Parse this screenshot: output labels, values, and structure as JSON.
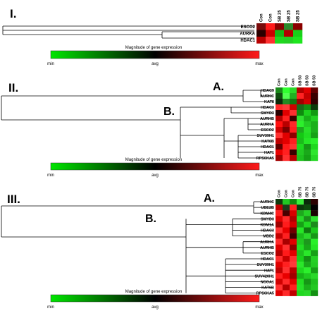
{
  "panels": [
    {
      "roman": "I.",
      "cols": [
        "Con",
        "Con",
        "SB 25",
        "SB 25",
        "SB 25"
      ],
      "genes": [
        "ESCO2",
        "AURKA",
        "HDAC1"
      ],
      "heat": [
        [
          "#7a0b0b",
          "#ff1a1a",
          "#8b0000",
          "#2b8a2b",
          "#8b0000"
        ],
        [
          "#2a0000",
          "#cc0000",
          "#14b814",
          "#b30000",
          "#19d119"
        ],
        [
          "#b80000",
          "#ff3030",
          "#1fd91f",
          "#24d024",
          "#1ee61e"
        ]
      ],
      "clusters": {}
    },
    {
      "roman": "II.",
      "cols": [
        "Con",
        "Con",
        "Con",
        "SB 50",
        "SB 50",
        "SB 50"
      ],
      "genes": [
        "HDAC9",
        "AURKC",
        "KAT8",
        "HDAC3",
        "SMYD3",
        "AURKB",
        "AURKA",
        "ESCO2",
        "SUV39H1",
        "KAT6B",
        "HDAC1",
        "HAT1",
        "RPS6KA5"
      ],
      "heat": [
        [
          "#1a8a1a",
          "#30ff30",
          "#2ad82a",
          "#b00000",
          "#e00000",
          "#600000"
        ],
        [
          "#0f4d0f",
          "#50ff50",
          "#22b022",
          "#ff2222",
          "#c40000",
          "#3a0000"
        ],
        [
          "#0a2a0a",
          "#228b22",
          "#117711",
          "#a00000",
          "#d40000",
          "#300000"
        ],
        [
          "#ff2a2a",
          "#ff3a3a",
          "#d00000",
          "#1a6a1a",
          "#139013",
          "#0b3b0b"
        ],
        [
          "#2a0000",
          "#e00000",
          "#ff3030",
          "#0f8a0f",
          "#1dd01d",
          "#129a12"
        ],
        [
          "#b40000",
          "#ff2020",
          "#400000",
          "#30e030",
          "#18b018",
          "#22d022"
        ],
        [
          "#ff1010",
          "#b80000",
          "#ff2a2a",
          "#2cf02c",
          "#24cc24",
          "#1ab01a"
        ],
        [
          "#d00000",
          "#7a0000",
          "#ff2020",
          "#1ea81e",
          "#28e028",
          "#1bb01b"
        ],
        [
          "#ff3030",
          "#e00000",
          "#900000",
          "#14c814",
          "#22dd22",
          "#16a016"
        ],
        [
          "#c00000",
          "#e40000",
          "#ff2020",
          "#1bbb1b",
          "#26e626",
          "#2af02a"
        ],
        [
          "#600000",
          "#ff1a1a",
          "#ff3333",
          "#1ed81e",
          "#169616",
          "#1fd81f"
        ],
        [
          "#e80000",
          "#ff2020",
          "#3a0000",
          "#22c822",
          "#1aa81a",
          "#2ee62e"
        ],
        [
          "#a00000",
          "#ff3030",
          "#b80000",
          "#1ec01e",
          "#15a015",
          "#26d826"
        ]
      ],
      "clusters": {
        "a": "A.",
        "b": "B."
      }
    },
    {
      "roman": "III.",
      "cols": [
        "Con",
        "Con",
        "Con",
        "SB 75",
        "SB 75",
        "SB 75"
      ],
      "genes": [
        "AURKC",
        "UBE2B",
        "KDM4C",
        "SMYD3",
        "KDM1A",
        "HDAC3",
        "MBD2",
        "AURKA",
        "AURKB",
        "ESCO2",
        "HDAC1",
        "SUV39H1",
        "HAT1",
        "SUV420H1",
        "NCOA1",
        "KAT6B",
        "RPS6KA5"
      ],
      "heat": [
        [
          "#0e3a0e",
          "#22c822",
          "#108a10",
          "#3af03a",
          "#0a2a0a",
          "#2a0000"
        ],
        [
          "#c00000",
          "#1a3a1a",
          "#ff2020",
          "#0b3a0b",
          "#0d4a0d",
          "#000000"
        ],
        [
          "#ff2020",
          "#4a0000",
          "#d80000",
          "#1ea81e",
          "#26d026",
          "#190000"
        ],
        [
          "#e00000",
          "#ff2a2a",
          "#b00000",
          "#28d828",
          "#1a901a",
          "#2ee02e"
        ],
        [
          "#a00000",
          "#ff1c1c",
          "#d40000",
          "#16a016",
          "#22d822",
          "#1c8a1c"
        ],
        [
          "#ff3030",
          "#e80000",
          "#700000",
          "#26e626",
          "#0f7a0f",
          "#1ac81a"
        ],
        [
          "#c40000",
          "#ff2020",
          "#400000",
          "#1bbb1b",
          "#2ad82a",
          "#169616"
        ],
        [
          "#ff2a2a",
          "#a80000",
          "#e00000",
          "#20c820",
          "#1d981d",
          "#2af02a"
        ],
        [
          "#e00000",
          "#ff3030",
          "#900000",
          "#22dd22",
          "#17a817",
          "#26e626"
        ],
        [
          "#b40000",
          "#ff1a1a",
          "#e40000",
          "#1ec01e",
          "#2ae82a",
          "#16a016"
        ],
        [
          "#ff2a2a",
          "#c80000",
          "#ff3030",
          "#1ad01a",
          "#139013",
          "#24d024"
        ],
        [
          "#e00000",
          "#ff2020",
          "#ff3a3a",
          "#2ae82a",
          "#1aa81a",
          "#22cc22"
        ],
        [
          "#c00000",
          "#ff3030",
          "#b80000",
          "#1fd81f",
          "#2cf02c",
          "#16a016"
        ],
        [
          "#ff2020",
          "#e80000",
          "#a00000",
          "#18b018",
          "#20c820",
          "#2ad82a"
        ],
        [
          "#d00000",
          "#ff2a2a",
          "#e00000",
          "#22dd22",
          "#169616",
          "#1ec01e"
        ],
        [
          "#ff3030",
          "#b40000",
          "#ff2020",
          "#28e028",
          "#1ab01a",
          "#22c822"
        ],
        [
          "#e00000",
          "#ff2a2a",
          "#c00000",
          "#1fd81f",
          "#28d828",
          "#139013"
        ]
      ],
      "clusters": {
        "a": "A.",
        "b": "B."
      }
    }
  ],
  "colorbars": [
    {
      "title": "Magnitude of gene expression",
      "min": "min",
      "avg": "avg",
      "max": "max"
    },
    {
      "title": "Magnitude of gene expression",
      "min": "min",
      "avg": "avg",
      "max": "max"
    },
    {
      "title": "Magnitude of gene expression",
      "min": "min",
      "avg": "avg",
      "max": "max"
    }
  ],
  "gradient": {
    "low": "#00e600",
    "mid": "#000000",
    "high": "#ff1a1a"
  }
}
